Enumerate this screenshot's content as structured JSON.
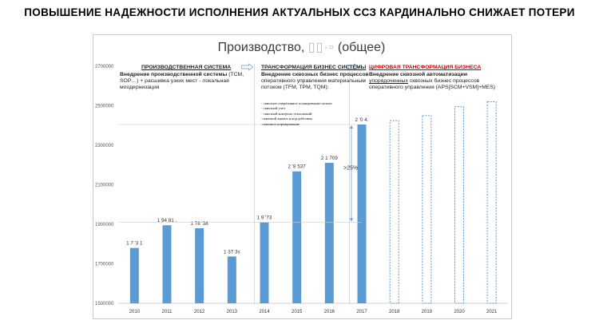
{
  "slide_title": "ПОВЫШЕНИЕ НАДЕЖНОСТИ ИСПОЛНЕНИЯ АКТУАЛЬНЫХ ССЗ КАРДИНАЛЬНО СНИЖАЕТ ПОТЕРИ",
  "sections": {
    "s1": {
      "heading": "ПРОИЗВОДСТВЕННАЯ СИСТЕМА",
      "bold": "Внедрение производственной системы",
      "text": " (TCM, SOP…) + расшивка узких мест - локальная моодернизация"
    },
    "s2": {
      "heading": "ТРАНСФОРМАЦИЯ БИЗНЕС СИСТЕМЫ",
      "bold": "Внедрение сквозных бизнес процессов",
      "text": " оперативного управления материальным потоком (TFM, TPM, TQM):",
      "list": [
        "- сквозное оперативное планирование потока",
        "- сквозной учет",
        "- сквозной контроль отклонений",
        "-сквозной анализ и кор.действия",
        "-сквозное нормирование"
      ]
    },
    "s3": {
      "heading": "ЦИФРОВАЯ ТРАНСФОРМАЦИЯ БИЗНЕСА",
      "bold": "Внедрение сквозной автоматизации",
      "under": "упорядоченных",
      "text": " сквозных бизнес процессов оперативного управления (APS[SCM+VSM]+MES)"
    }
  },
  "accent_color": "#5b9bd5",
  "highlight_color": "#d00000",
  "chart_data": {
    "type": "bar",
    "title_prefix": "Производство, ",
    "title_suffix": " (общее)",
    "categories": [
      "2010",
      "2011",
      "2012",
      "2013",
      "2014",
      "2015",
      "2016",
      "2017",
      "2018",
      "2019",
      "2020",
      "2021"
    ],
    "values": [
      1780000,
      1895000,
      1880000,
      1737000,
      1910000,
      2168000,
      2211000,
      2405000,
      2425000,
      2450000,
      2495000,
      2520000
    ],
    "projected_from": "2018",
    "data_labels": [
      "1 7 '3 1",
      "1 94 81 .",
      "1 78 '38",
      "1 37 3s",
      "1 9 '73",
      "2 '8 537",
      "2 1 709",
      "2 '0 4.",
      "",
      "",
      "",
      ""
    ],
    "ylim": [
      1500000,
      2700000
    ],
    "yticks": [
      1500000,
      1700000,
      1900000,
      2100000,
      2300000,
      2500000,
      2700000
    ],
    "ytick_labels": [
      "1500000",
      "1700000",
      "1900000",
      "2100000",
      "2300000",
      "2500000",
      "2700000"
    ],
    "annotation": ">25%",
    "grid": false
  }
}
